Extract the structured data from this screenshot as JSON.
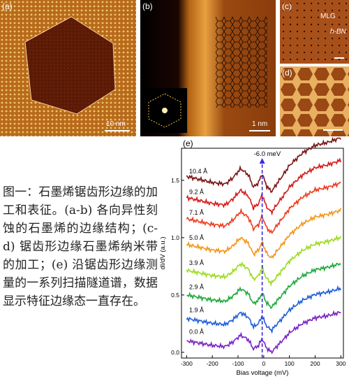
{
  "panels": {
    "a": {
      "label": "(a)",
      "scale_bar": "10 nm"
    },
    "b": {
      "label": "(b)",
      "scale_bar": "1 nm"
    },
    "c": {
      "label": "(c)",
      "mlg": "MLG",
      "hbn": "h-BN"
    },
    "d": {
      "label": "(d)"
    }
  },
  "caption": "图一：石墨烯锯齿形边缘的加工和表征。(a-b) 各向异性刻蚀的石墨烯的边缘结构；(c-d) 锯齿形边缘石墨烯纳米带的加工；(e) 沿锯齿形边缘测量的一系列扫描隧道谱，数据显示特征边缘态一直存在。",
  "chart_data": {
    "type": "line",
    "panel_label": "(e)",
    "xlabel": "Bias voltage (mV)",
    "ylabel": "dI/dV (a.u.)",
    "xlim": [
      -320,
      310
    ],
    "ylim": [
      -0.05,
      1.78
    ],
    "xticks": [
      -300,
      -200,
      -100,
      0,
      100,
      200,
      300
    ],
    "yticks": [
      0.0,
      0.5,
      1.0,
      1.5
    ],
    "annotation": "-6.0 meV",
    "annotation_x": -6.0,
    "series": [
      {
        "name": "0.0 Å",
        "color": "#7a22c4",
        "offset": 0.0
      },
      {
        "name": "1.9 Å",
        "color": "#1e5fd8",
        "offset": 0.19
      },
      {
        "name": "2.9 Å",
        "color": "#1ea83a",
        "offset": 0.39
      },
      {
        "name": "3.9 Å",
        "color": "#9bdc1e",
        "offset": 0.6
      },
      {
        "name": "5.0 Å",
        "color": "#f29618",
        "offset": 0.82
      },
      {
        "name": "7.1 Å",
        "color": "#ee3a1c",
        "offset": 1.04
      },
      {
        "name": "9.2 Å",
        "color": "#d61a1a",
        "offset": 1.22
      },
      {
        "name": "10.4 Å",
        "color": "#7a1212",
        "offset": 1.4
      }
    ],
    "base_curve": {
      "x": [
        -300,
        -250,
        -200,
        -150,
        -120,
        -90,
        -60,
        -40,
        -20,
        -6,
        10,
        30,
        50,
        80,
        100,
        150,
        200,
        250,
        300
      ],
      "y": [
        0.1,
        0.08,
        0.06,
        0.05,
        0.09,
        0.15,
        0.11,
        0.03,
        0.06,
        0.12,
        0.04,
        0.0,
        0.05,
        0.12,
        0.17,
        0.25,
        0.3,
        0.32,
        0.35
      ]
    }
  },
  "colors": {
    "afm_dark": "#5a1a06",
    "afm_bright": "#f0c060",
    "afm_mid": "#b06018",
    "arrow": "#3a2bd6"
  }
}
